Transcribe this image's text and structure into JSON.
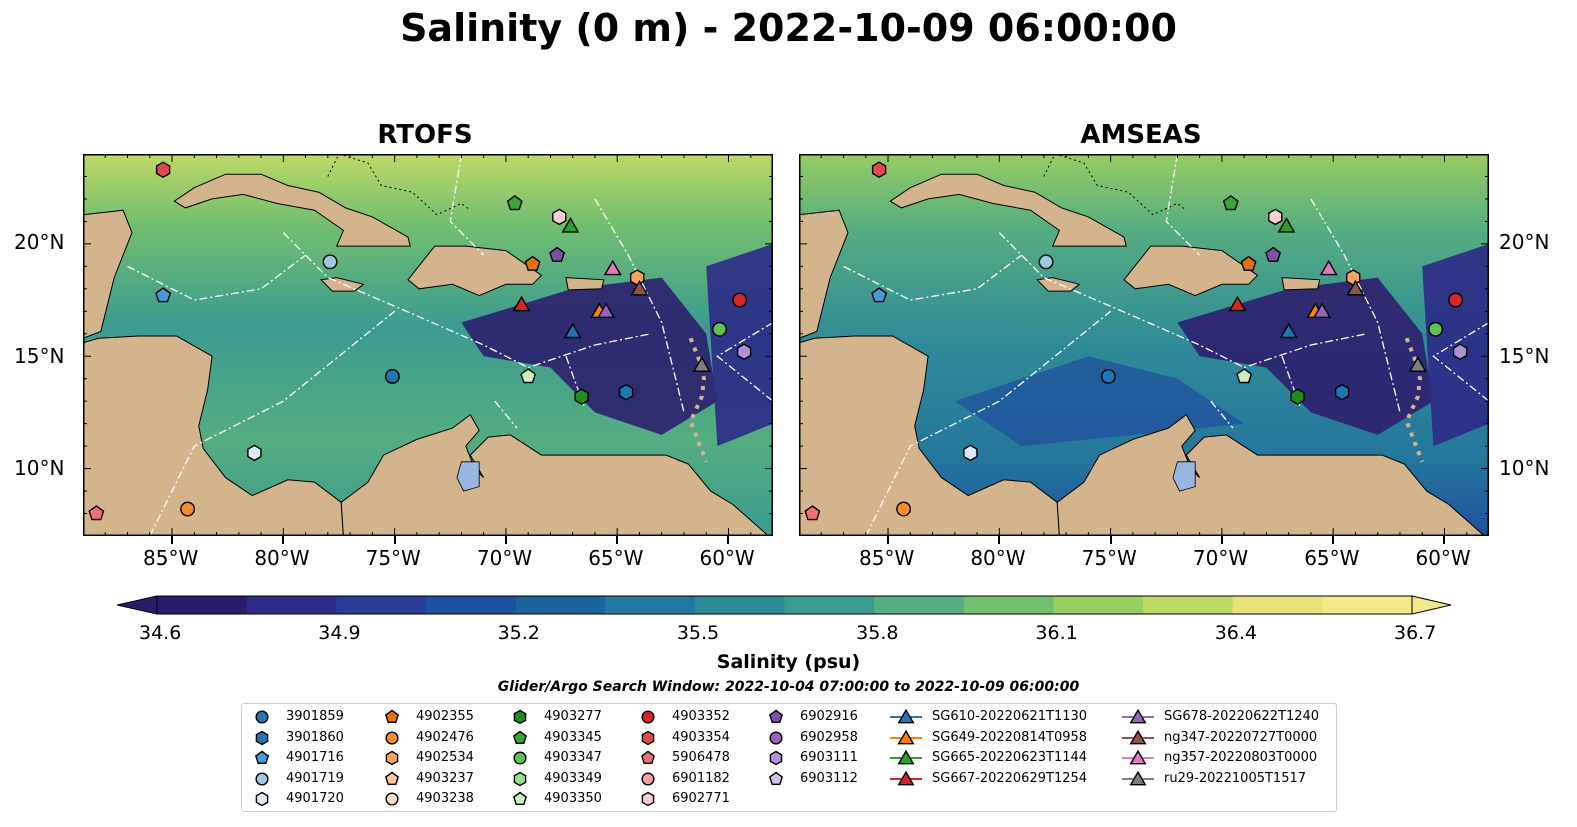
{
  "title": "Salinity (0 m) - 2022-10-09 06:00:00",
  "panels": [
    {
      "id": "rtofs",
      "title": "RTOFS"
    },
    {
      "id": "amseas",
      "title": "AMSEAS"
    }
  ],
  "axes": {
    "lon_ticks": [
      "85°W",
      "80°W",
      "75°W",
      "70°W",
      "65°W",
      "60°W"
    ],
    "lat_ticks": [
      "20°N",
      "15°N",
      "10°N"
    ],
    "lon_range": [
      -89,
      -58
    ],
    "lat_range": [
      7,
      24
    ]
  },
  "colorbar": {
    "label": "Salinity (psu)",
    "ticks": [
      "34.6",
      "34.9",
      "35.2",
      "35.5",
      "35.8",
      "36.1",
      "36.4",
      "36.7"
    ],
    "range": [
      34.6,
      36.7
    ],
    "colors": [
      "#2a1b6b",
      "#2c2a86",
      "#283c98",
      "#1f509d",
      "#1b639d",
      "#25769c",
      "#2f8a98",
      "#3b9b8f",
      "#55ad80",
      "#74bf6f",
      "#98cd63",
      "#bfd966",
      "#e6e17a",
      "#f5e88c"
    ]
  },
  "search_window": "Glider/Argo Search Window: 2022-10-04 07:00:00 to 2022-10-09 06:00:00",
  "colors": {
    "land": "#d3b48c",
    "lakes": "#97b6e1",
    "ocean_deep": "#2c1f6e"
  },
  "legend": {
    "columns": [
      [
        {
          "label": "3901859",
          "marker": "circle",
          "color": "#1f77b4"
        },
        {
          "label": "3901860",
          "marker": "hexagon",
          "color": "#1f77b4"
        },
        {
          "label": "4901716",
          "marker": "pentagon",
          "color": "#4a98d6"
        },
        {
          "label": "4901719",
          "marker": "circle",
          "color": "#9ecae1"
        },
        {
          "label": "4901720",
          "marker": "hexagon",
          "color": "#d6eaf8"
        }
      ],
      [
        {
          "label": "4902355",
          "marker": "pentagon",
          "color": "#e6700b"
        },
        {
          "label": "4902476",
          "marker": "circle",
          "color": "#f68c2a"
        },
        {
          "label": "4902534",
          "marker": "hexagon",
          "color": "#f9a55e"
        },
        {
          "label": "4903237",
          "marker": "pentagon",
          "color": "#fcc79a"
        },
        {
          "label": "4903238",
          "marker": "circle",
          "color": "#fde1c4"
        }
      ],
      [
        {
          "label": "4903277",
          "marker": "hexagon",
          "color": "#1e8c1e"
        },
        {
          "label": "4903345",
          "marker": "pentagon",
          "color": "#3aa53a"
        },
        {
          "label": "4903347",
          "marker": "circle",
          "color": "#5cc25c"
        },
        {
          "label": "4903349",
          "marker": "hexagon",
          "color": "#98df8a"
        },
        {
          "label": "4903350",
          "marker": "pentagon",
          "color": "#c7f0c0"
        }
      ],
      [
        {
          "label": "4903352",
          "marker": "circle",
          "color": "#d62728"
        },
        {
          "label": "4903354",
          "marker": "hexagon",
          "color": "#e04a4a"
        },
        {
          "label": "5906478",
          "marker": "pentagon",
          "color": "#ef7070"
        },
        {
          "label": "6901182",
          "marker": "circle",
          "color": "#f7a0a0"
        },
        {
          "label": "6902771",
          "marker": "hexagon",
          "color": "#fcd0d0"
        }
      ],
      [
        {
          "label": "6902916",
          "marker": "pentagon",
          "color": "#7d4fa8"
        },
        {
          "label": "6902958",
          "marker": "circle",
          "color": "#9467bd"
        },
        {
          "label": "6903111",
          "marker": "hexagon",
          "color": "#b391d6"
        },
        {
          "label": "6903112",
          "marker": "pentagon",
          "color": "#d6c2ee"
        }
      ],
      [
        {
          "label": "SG610-20220621T1130",
          "marker": "triangle",
          "color": "#1f77b4"
        },
        {
          "label": "SG649-20220814T0958",
          "marker": "triangle",
          "color": "#ff7f0e"
        },
        {
          "label": "SG665-20220623T1144",
          "marker": "triangle",
          "color": "#2ca02c"
        },
        {
          "label": "SG667-20220629T1254",
          "marker": "triangle",
          "color": "#d62728"
        }
      ],
      [
        {
          "label": "SG678-20220622T1240",
          "marker": "triangle",
          "color": "#9467bd"
        },
        {
          "label": "ng347-20220727T0000",
          "marker": "triangle",
          "color": "#8c564b"
        },
        {
          "label": "ng357-20220803T0000",
          "marker": "triangle",
          "color": "#e377c2"
        },
        {
          "label": "ru29-20221005T1517",
          "marker": "triangle",
          "color": "#7f7f7f"
        }
      ]
    ]
  },
  "observations": [
    {
      "label": "3901859",
      "lon": -75.1,
      "lat": 14.1,
      "marker": "circle",
      "color": "#1f77b4"
    },
    {
      "label": "3901860",
      "lon": -64.6,
      "lat": 13.4,
      "marker": "hexagon",
      "color": "#1f77b4"
    },
    {
      "label": "4901716",
      "lon": -85.4,
      "lat": 17.7,
      "marker": "pentagon",
      "color": "#4a98d6"
    },
    {
      "label": "4901719",
      "lon": -77.9,
      "lat": 19.2,
      "marker": "circle",
      "color": "#9ecae1"
    },
    {
      "label": "4901720",
      "lon": -81.3,
      "lat": 10.7,
      "marker": "hexagon",
      "color": "#d6eaf8"
    },
    {
      "label": "4902355",
      "lon": -68.8,
      "lat": 19.1,
      "marker": "pentagon",
      "color": "#e6700b"
    },
    {
      "label": "4902476",
      "lon": -84.3,
      "lat": 8.2,
      "marker": "circle",
      "color": "#f68c2a"
    },
    {
      "label": "4902534",
      "lon": -64.1,
      "lat": 18.5,
      "marker": "hexagon",
      "color": "#f9a55e"
    },
    {
      "label": "4903277",
      "lon": -66.6,
      "lat": 13.2,
      "marker": "hexagon",
      "color": "#1e8c1e"
    },
    {
      "label": "4903345",
      "lon": -69.6,
      "lat": 21.8,
      "marker": "pentagon",
      "color": "#3aa53a"
    },
    {
      "label": "4903347",
      "lon": -60.4,
      "lat": 16.2,
      "marker": "circle",
      "color": "#5cc25c"
    },
    {
      "label": "4903350",
      "lon": -69.0,
      "lat": 14.1,
      "marker": "pentagon",
      "color": "#c7f0c0"
    },
    {
      "label": "4903352",
      "lon": -59.5,
      "lat": 17.5,
      "marker": "circle",
      "color": "#d62728"
    },
    {
      "label": "4903354",
      "lon": -85.4,
      "lat": 23.3,
      "marker": "hexagon",
      "color": "#e04a4a"
    },
    {
      "label": "5906478",
      "lon": -88.4,
      "lat": 8.0,
      "marker": "pentagon",
      "color": "#ef7070"
    },
    {
      "label": "6902771",
      "lon": -67.6,
      "lat": 21.2,
      "marker": "hexagon",
      "color": "#fcd0d0"
    },
    {
      "label": "6902916",
      "lon": -67.7,
      "lat": 19.5,
      "marker": "pentagon",
      "color": "#7d4fa8"
    },
    {
      "label": "6903111",
      "lon": -59.3,
      "lat": 15.2,
      "marker": "hexagon",
      "color": "#b391d6"
    },
    {
      "label": "SG610-20220621T1130",
      "lon": -67.0,
      "lat": 16.1,
      "marker": "triangle",
      "color": "#1f77b4"
    },
    {
      "label": "SG649-20220814T0958",
      "lon": -65.8,
      "lat": 17.0,
      "marker": "triangle",
      "color": "#ff7f0e"
    },
    {
      "label": "SG665-20220623T1144",
      "lon": -67.1,
      "lat": 20.8,
      "marker": "triangle",
      "color": "#2ca02c"
    },
    {
      "label": "SG667-20220629T1254",
      "lon": -69.3,
      "lat": 17.3,
      "marker": "triangle",
      "color": "#d62728"
    },
    {
      "label": "SG678-20220622T1240",
      "lon": -65.5,
      "lat": 17.0,
      "marker": "triangle",
      "color": "#9467bd"
    },
    {
      "label": "ng347-20220727T0000",
      "lon": -64.0,
      "lat": 18.0,
      "marker": "triangle",
      "color": "#8c564b"
    },
    {
      "label": "ng357-20220803T0000",
      "lon": -65.2,
      "lat": 18.9,
      "marker": "triangle",
      "color": "#e377c2"
    },
    {
      "label": "ru29-20221005T1517",
      "lon": -61.2,
      "lat": 14.6,
      "marker": "triangle",
      "color": "#7f7f7f"
    }
  ]
}
